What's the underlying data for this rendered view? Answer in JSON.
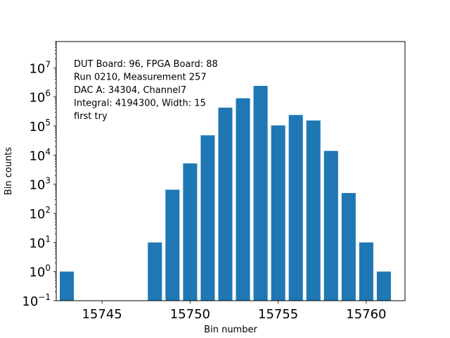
{
  "chart_data": {
    "type": "bar",
    "title": "",
    "xlabel": "Bin number",
    "ylabel": "Bin counts",
    "yscale": "log",
    "ylim": [
      0.1,
      80000000
    ],
    "xlim": [
      15742.4,
      15762.2
    ],
    "bar_color": "#1f77b4",
    "grid": false,
    "x": [
      15743,
      15748,
      15749,
      15750,
      15751,
      15752,
      15753,
      15754,
      15755,
      15756,
      15757,
      15758,
      15759,
      15760,
      15761
    ],
    "values": [
      1,
      10,
      650,
      5200,
      48000,
      430000,
      900000,
      2400000,
      105000,
      240000,
      155000,
      14000,
      500,
      10,
      1
    ],
    "x_ticks": [
      {
        "value": 15745,
        "label": "15745"
      },
      {
        "value": 15750,
        "label": "15750"
      },
      {
        "value": 15755,
        "label": "15755"
      },
      {
        "value": 15760,
        "label": "15760"
      }
    ],
    "y_ticks": [
      {
        "exp": -1,
        "base": "10",
        "sup": "−1"
      },
      {
        "exp": 0,
        "base": "10",
        "sup": "0"
      },
      {
        "exp": 1,
        "base": "10",
        "sup": "1"
      },
      {
        "exp": 2,
        "base": "10",
        "sup": "2"
      },
      {
        "exp": 3,
        "base": "10",
        "sup": "3"
      },
      {
        "exp": 4,
        "base": "10",
        "sup": "4"
      },
      {
        "exp": 5,
        "base": "10",
        "sup": "5"
      },
      {
        "exp": 6,
        "base": "10",
        "sup": "6"
      },
      {
        "exp": 7,
        "base": "10",
        "sup": "7"
      }
    ],
    "annotation_lines": [
      "DUT Board: 96, FPGA Board: 88",
      "Run 0210, Measurement 257",
      "DAC A: 34304, Channel7",
      "Integral: 4194300, Width: 15",
      "first try"
    ]
  }
}
